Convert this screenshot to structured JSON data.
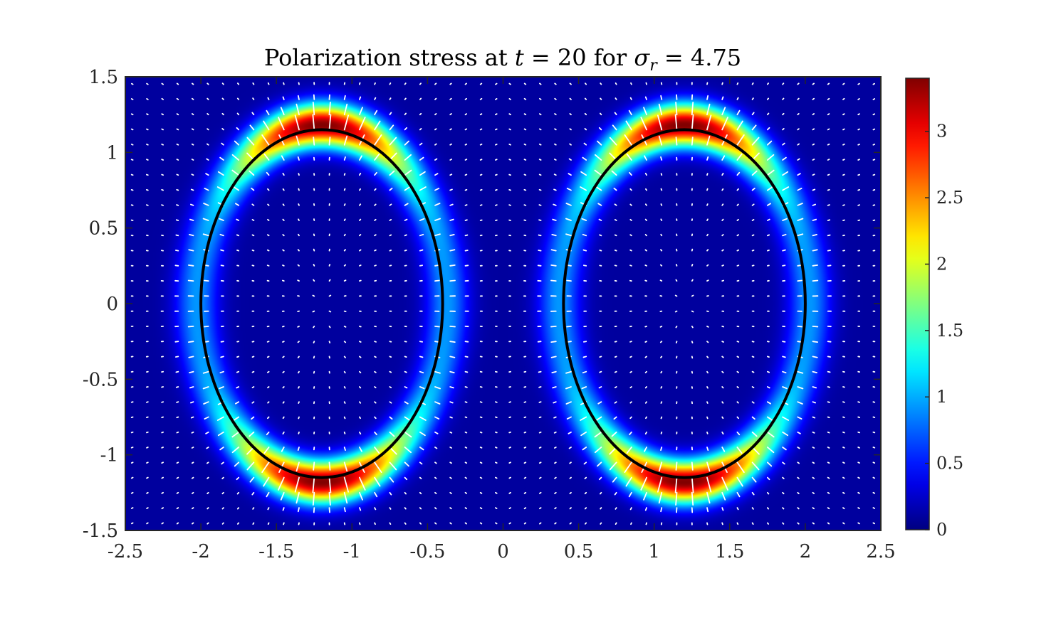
{
  "chart_data": {
    "type": "heatmap",
    "title": {
      "prefix": "Polarization stress at ",
      "t_symbol": "t",
      "t_eq": " = 20 for ",
      "sigma_symbol": "σ",
      "sigma_sub": "r",
      "sigma_eq": " = 4.75"
    },
    "xlabel": "",
    "ylabel": "",
    "xlim": [
      -2.5,
      2.5
    ],
    "ylim": [
      -1.5,
      1.5
    ],
    "x_ticks": [
      -2.5,
      -2,
      -1.5,
      -1,
      -0.5,
      0,
      0.5,
      1,
      1.5,
      2,
      2.5
    ],
    "x_tick_labels": [
      "-2.5",
      "-2",
      "-1.5",
      "-1",
      "-0.5",
      "0",
      "0.5",
      "1",
      "1.5",
      "2",
      "2.5"
    ],
    "y_ticks": [
      1.5,
      1,
      0.5,
      0,
      -0.5,
      -1,
      -1.5
    ],
    "y_tick_labels": [
      "1.5",
      "1",
      "0.5",
      "0",
      "-0.5",
      "-1",
      "-1.5"
    ],
    "colormap": "jet",
    "colorbar": {
      "range": [
        0,
        3.4
      ],
      "ticks": [
        0,
        0.5,
        1,
        1.5,
        2,
        2.5,
        3
      ],
      "tick_labels": [
        "0",
        "0.5",
        "1",
        "1.5",
        "2",
        "2.5",
        "3"
      ],
      "placement": "right"
    },
    "ellipses": [
      {
        "cx": -1.2,
        "cy": 0,
        "rx": 0.8,
        "ry": 1.15,
        "color": "#000000"
      },
      {
        "cx": 1.2,
        "cy": 0,
        "rx": 0.8,
        "ry": 1.15,
        "color": "#000000"
      }
    ],
    "field_peak_value": 3.4,
    "quiver_color": "#ffffff",
    "quiver_spacing": 0.1,
    "grid": false
  }
}
